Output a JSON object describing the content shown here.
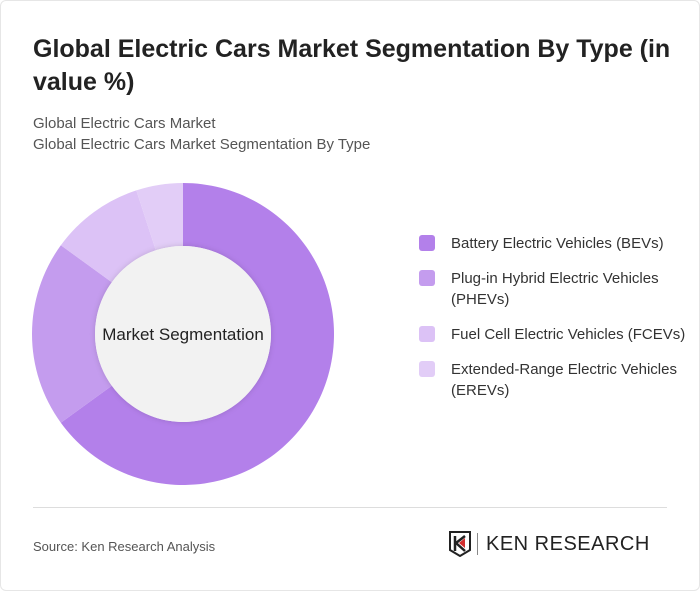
{
  "title": "Global Electric Cars Market Segmentation By Type (in value %)",
  "subtitle1": "Global Electric Cars Market",
  "subtitle2": "Global Electric Cars Market Segmentation By Type",
  "source": "Source: Ken Research Analysis",
  "logo_text": "KEN RESEARCH",
  "chart_data": {
    "type": "pie",
    "variant": "donut",
    "center_label": "Market Segmentation",
    "legend_position": "right",
    "categories": [
      "Battery Electric Vehicles (BEVs)",
      "Plug-in Hybrid Electric Vehicles (PHEVs)",
      "Fuel Cell Electric Vehicles (FCEVs)",
      "Extended-Range Electric Vehicles (EREVs)"
    ],
    "values": [
      65,
      20,
      10,
      5
    ],
    "colors": [
      "#b380ea",
      "#c49cee",
      "#dcc2f6",
      "#e2cdf7"
    ]
  }
}
